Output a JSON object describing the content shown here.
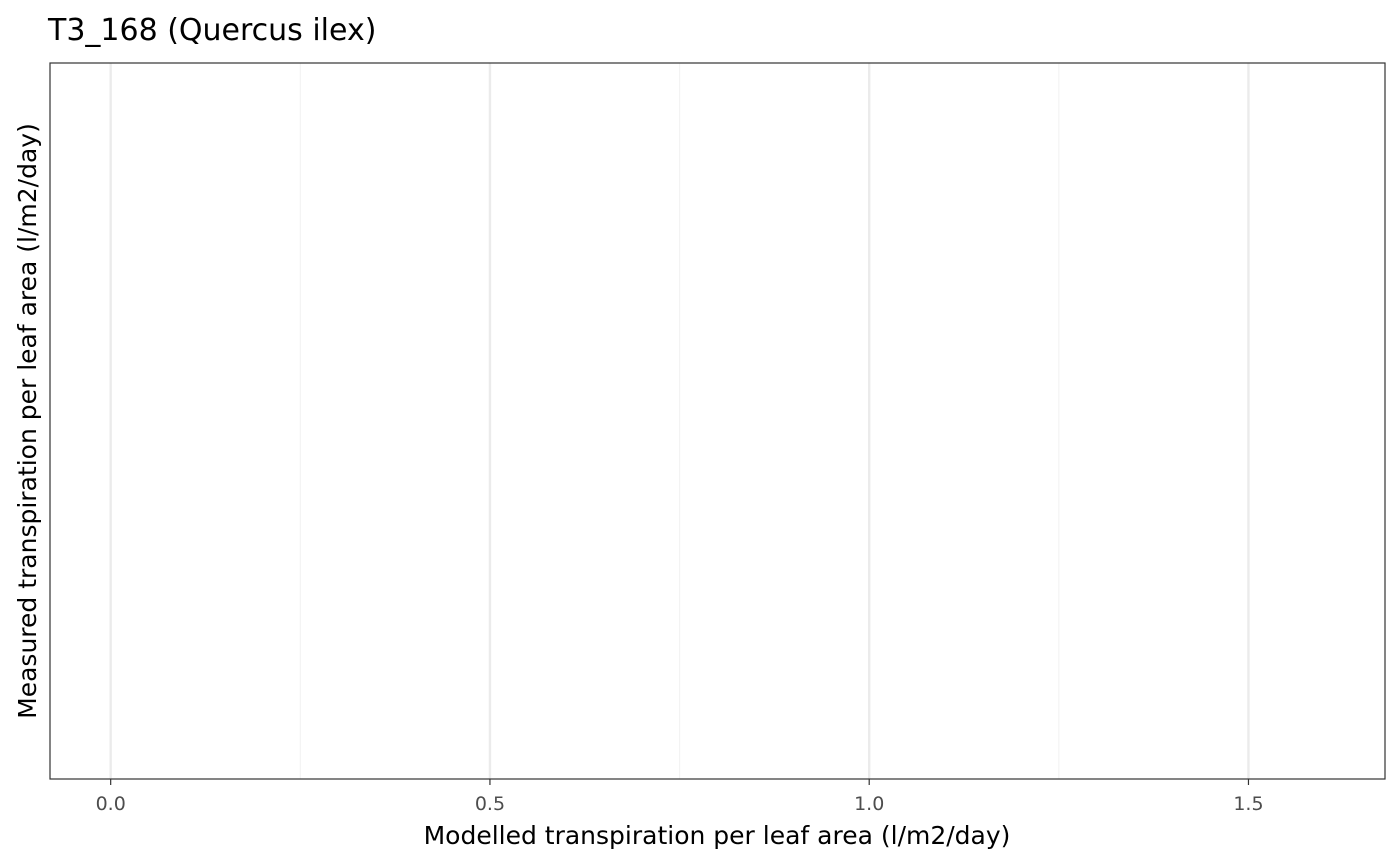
{
  "chart_data": {
    "type": "scatter",
    "title": "T3_168 (Quercus ilex)",
    "xlabel": "Modelled transpiration per leaf area (l/m2/day)",
    "ylabel": "Measured transpiration per leaf area (l/m2/day)",
    "xlim": [
      -0.08,
      1.68
    ],
    "x_major_ticks": [
      0.0,
      0.5,
      1.0,
      1.5
    ],
    "x_tick_labels": [
      "0.0",
      "0.5",
      "1.0",
      "1.5"
    ],
    "x_minor_ticks": [
      0.25,
      0.75,
      1.25
    ],
    "y_ticks": [],
    "grid": true,
    "series": [
      {
        "x": [],
        "y": []
      }
    ]
  },
  "colors": {
    "panel_border": "#333333",
    "grid_major": "#ebebeb",
    "grid_minor": "#f3f3f3",
    "tick_label": "#4d4d4d",
    "text": "#000000"
  }
}
